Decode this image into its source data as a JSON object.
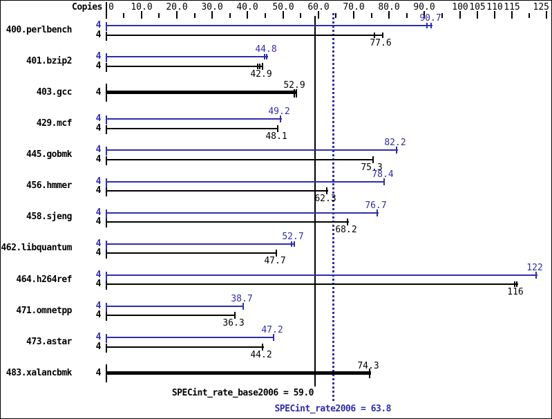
{
  "chart_data": {
    "type": "bar",
    "orientation": "horizontal",
    "copies_header": "Copies",
    "x_axis": {
      "labels": [
        {
          "value": 0,
          "text": "0",
          "align": "left"
        },
        {
          "value": 10,
          "text": "10.0",
          "align": "center"
        },
        {
          "value": 20,
          "text": "20.0",
          "align": "center"
        },
        {
          "value": 30,
          "text": "30.0",
          "align": "center"
        },
        {
          "value": 40,
          "text": "40.0",
          "align": "center"
        },
        {
          "value": 50,
          "text": "50.0",
          "align": "center"
        },
        {
          "value": 60,
          "text": "60.0",
          "align": "center"
        },
        {
          "value": 70,
          "text": "70.0",
          "align": "center"
        },
        {
          "value": 80,
          "text": "80.0",
          "align": "center"
        },
        {
          "value": 90,
          "text": "90.0",
          "align": "center"
        },
        {
          "value": 100,
          "text": "100",
          "align": "center"
        },
        {
          "value": 105,
          "text": "105",
          "align": "center"
        },
        {
          "value": 110,
          "text": "110",
          "align": "center"
        },
        {
          "value": 115,
          "text": "115",
          "align": "center"
        },
        {
          "value": 125,
          "text": "125",
          "align": "right"
        }
      ],
      "major_ticks": [
        0,
        10,
        20,
        30,
        40,
        50,
        60,
        70,
        80,
        90,
        100,
        105,
        110,
        115,
        125
      ],
      "minor_ticks": [
        5,
        15,
        25,
        35,
        45,
        55,
        65,
        75,
        85,
        95,
        120
      ]
    },
    "series_colors": {
      "rate": "#2d2dac",
      "base": "#000000"
    },
    "benchmarks": [
      {
        "name": "400.perlbench",
        "copies": [
          "4",
          "4"
        ],
        "rate": {
          "value": 90.7,
          "label": "90.7",
          "end": 92.2,
          "whiskers": [
            90.8,
            91.8
          ],
          "cap": false
        },
        "base": {
          "value": 77.6,
          "label": "77.6",
          "end": 78.2,
          "whiskers": [
            75.9,
            78.2
          ],
          "cap": false
        }
      },
      {
        "name": "401.bzip2",
        "copies": [
          "4",
          "4"
        ],
        "rate": {
          "value": 44.8,
          "label": "44.8",
          "end": 45.8,
          "whiskers": [
            44.9,
            45.5
          ],
          "cap": false
        },
        "base": {
          "value": 42.9,
          "label": "42.9",
          "end": 44.4,
          "whiskers": [
            42.9,
            43.5
          ],
          "cap": true
        }
      },
      {
        "name": "403.gcc",
        "copies": [
          "4"
        ],
        "single": {
          "value": 52.9,
          "label": "52.9",
          "end": 53.9,
          "whiskers": [
            53.2,
            53.8
          ],
          "cap": false,
          "thick": true
        }
      },
      {
        "name": "429.mcf",
        "copies": [
          "4",
          "4"
        ],
        "rate": {
          "value": 49.2,
          "label": "49.2",
          "end": 49.6,
          "whiskers": [],
          "cap": true
        },
        "base": {
          "value": 48.1,
          "label": "48.1",
          "end": 48.7,
          "whiskers": [],
          "cap": true
        }
      },
      {
        "name": "445.gobmk",
        "copies": [
          "4",
          "4"
        ],
        "rate": {
          "value": 82.2,
          "label": "82.2",
          "end": 82.4,
          "whiskers": [],
          "cap": true
        },
        "base": {
          "value": 75.3,
          "label": "75.3",
          "end": 75.6,
          "whiskers": [],
          "cap": true
        }
      },
      {
        "name": "456.hmmer",
        "copies": [
          "4",
          "4"
        ],
        "rate": {
          "value": 78.4,
          "label": "78.4",
          "end": 78.8,
          "whiskers": [],
          "cap": true
        },
        "base": {
          "value": 62.3,
          "label": "62.3",
          "end": 62.6,
          "whiskers": [],
          "cap": true
        }
      },
      {
        "name": "458.sjeng",
        "copies": [
          "4",
          "4"
        ],
        "rate": {
          "value": 76.7,
          "label": "76.7",
          "end": 76.9,
          "whiskers": [],
          "cap": true
        },
        "base": {
          "value": 68.2,
          "label": "68.2",
          "end": 68.5,
          "whiskers": [],
          "cap": true
        }
      },
      {
        "name": "462.libquantum",
        "copies": [
          "4",
          "4"
        ],
        "rate": {
          "value": 52.7,
          "label": "52.7",
          "end": 53.4,
          "whiskers": [
            52.5,
            53.2
          ],
          "cap": false
        },
        "base": {
          "value": 47.7,
          "label": "47.7",
          "end": 48.3,
          "whiskers": [],
          "cap": true
        }
      },
      {
        "name": "464.h264ref",
        "copies": [
          "4",
          "4"
        ],
        "rate": {
          "value": 122,
          "label": "122",
          "end": 122.3,
          "whiskers": [],
          "cap": true
        },
        "base": {
          "value": 116,
          "label": "116",
          "end": 116.7,
          "whiskers": [
            115.9,
            116.5
          ],
          "cap": false
        }
      },
      {
        "name": "471.omnetpp",
        "copies": [
          "4",
          "4"
        ],
        "rate": {
          "value": 38.7,
          "label": "38.7",
          "end": 38.9,
          "whiskers": [],
          "cap": true
        },
        "base": {
          "value": 36.3,
          "label": "36.3",
          "end": 36.6,
          "whiskers": [],
          "cap": true
        }
      },
      {
        "name": "473.astar",
        "copies": [
          "4",
          "4"
        ],
        "rate": {
          "value": 47.2,
          "label": "47.2",
          "end": 47.5,
          "whiskers": [],
          "cap": true
        },
        "base": {
          "value": 44.2,
          "label": "44.2",
          "end": 44.5,
          "whiskers": [],
          "cap": true
        }
      },
      {
        "name": "483.xalancbmk",
        "copies": [
          "4"
        ],
        "single": {
          "value": 74.3,
          "label": "74.3",
          "end": 74.8,
          "whiskers": [],
          "cap": true,
          "thick": true
        }
      }
    ],
    "reference_lines": [
      {
        "name": "base",
        "value": 59.0,
        "style": "solid",
        "label": "SPECint_rate_base2006 = 59.0",
        "color": "#000000"
      },
      {
        "name": "peak",
        "value": 63.8,
        "style": "dotted",
        "label": "SPECint_rate2006 = 63.8",
        "color": "#2d2dac"
      }
    ]
  }
}
